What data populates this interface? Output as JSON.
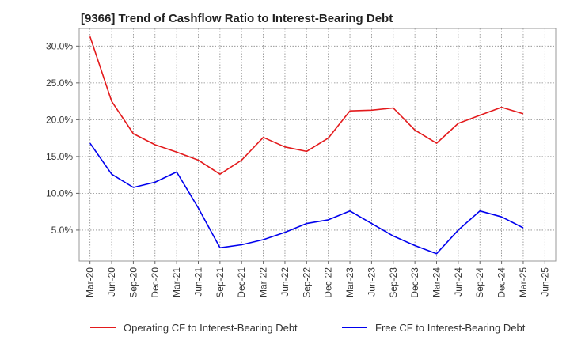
{
  "chart_data": {
    "type": "line",
    "title": "[9366]  Trend of Cashflow Ratio to Interest-Bearing Debt",
    "xlabel": "",
    "ylabel": "",
    "x": [
      "Mar-20",
      "Jun-20",
      "Sep-20",
      "Dec-20",
      "Mar-21",
      "Jun-21",
      "Sep-21",
      "Dec-21",
      "Mar-22",
      "Jun-22",
      "Sep-22",
      "Dec-22",
      "Mar-23",
      "Jun-23",
      "Sep-23",
      "Dec-23",
      "Mar-24",
      "Jun-24",
      "Sep-24",
      "Dec-24",
      "Mar-25",
      "Jun-25"
    ],
    "ylim": [
      0.8,
      32.4
    ],
    "yticks": [
      5.0,
      10.0,
      15.0,
      20.0,
      25.0,
      30.0
    ],
    "ytick_labels": [
      "5.0%",
      "10.0%",
      "15.0%",
      "20.0%",
      "25.0%",
      "30.0%"
    ],
    "grid": true,
    "legend_position": "bottom",
    "series": [
      {
        "name": "Operating CF to Interest-Bearing Debt",
        "color": "#e31a1c",
        "values": [
          31.3,
          22.5,
          18.1,
          16.6,
          15.6,
          14.5,
          12.6,
          14.5,
          17.6,
          16.3,
          15.7,
          17.5,
          21.2,
          21.3,
          21.6,
          18.6,
          16.8,
          19.5,
          20.6,
          21.7,
          20.8,
          null
        ]
      },
      {
        "name": "Free CF to Interest-Bearing Debt",
        "color": "#0000ee",
        "values": [
          16.8,
          12.6,
          10.8,
          11.5,
          12.9,
          8.0,
          2.6,
          3.0,
          3.7,
          4.7,
          5.9,
          6.4,
          7.6,
          5.9,
          4.2,
          2.9,
          1.8,
          5.0,
          7.6,
          6.8,
          5.3,
          null
        ]
      }
    ]
  }
}
